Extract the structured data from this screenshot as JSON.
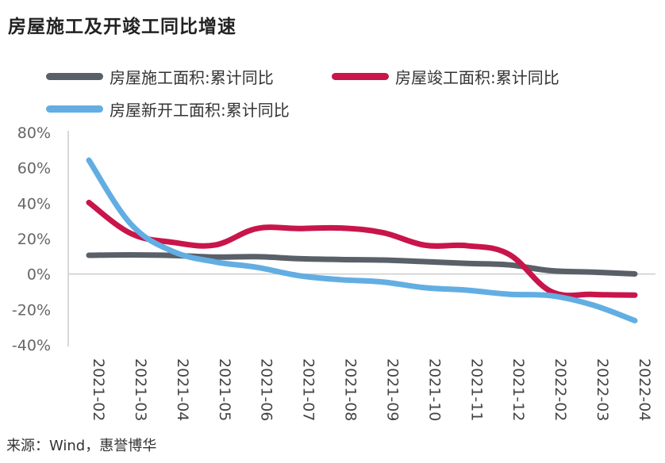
{
  "title": "房屋施工及开竣工同比增速",
  "source": "来源：Wind，惠誉博华",
  "chart_data": {
    "type": "line",
    "categories": [
      "2021-02",
      "2021-03",
      "2021-04",
      "2021-05",
      "2021-06",
      "2021-07",
      "2021-08",
      "2021-09",
      "2021-10",
      "2021-11",
      "2021-12",
      "2022-02",
      "2022-03",
      "2022-04"
    ],
    "ylim": [
      -40,
      80
    ],
    "yticks": [
      "80%",
      "60%",
      "40%",
      "20%",
      "0%",
      "-20%",
      "-40%"
    ],
    "ytick_values": [
      80,
      60,
      40,
      20,
      0,
      -20,
      -40
    ],
    "grid": false,
    "legend": "top",
    "series": [
      {
        "name": "房屋施工面积:累计同比",
        "color": "#5a6068",
        "values": [
          10.6,
          10.8,
          10.5,
          9.6,
          9.8,
          8.7,
          8.2,
          7.9,
          7.0,
          6.0,
          5.2,
          1.9,
          1.1,
          0.1
        ]
      },
      {
        "name": "房屋竣工面积:累计同比",
        "color": "#c8154a",
        "values": [
          40.4,
          22.9,
          17.9,
          16.4,
          25.7,
          25.7,
          26.0,
          23.4,
          16.3,
          16.0,
          11.2,
          -9.8,
          -11.5,
          -11.9
        ]
      },
      {
        "name": "房屋新开工面积:累计同比",
        "color": "#62aee3",
        "values": [
          64.3,
          28.2,
          12.8,
          6.9,
          3.8,
          -0.9,
          -3.2,
          -4.5,
          -7.7,
          -9.1,
          -11.4,
          -12.2,
          -17.5,
          -26.3
        ]
      }
    ]
  }
}
